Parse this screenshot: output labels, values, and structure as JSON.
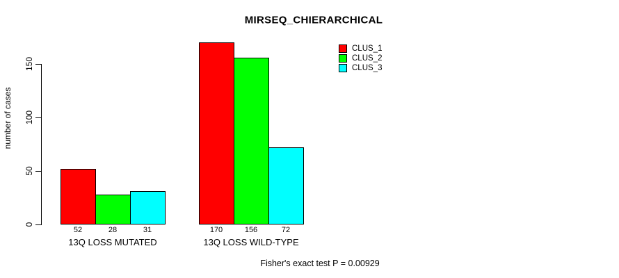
{
  "chart_data": {
    "type": "bar",
    "title": "MIRSEQ_CHIERARCHICAL",
    "ylabel": "number of cases",
    "xlabel": "",
    "categories": [
      "13Q LOSS MUTATED",
      "13Q LOSS WILD-TYPE"
    ],
    "series": [
      {
        "name": "CLUS_1",
        "color": "#FF0000",
        "values": [
          52,
          170
        ]
      },
      {
        "name": "CLUS_2",
        "color": "#00FF00",
        "values": [
          28,
          156
        ]
      },
      {
        "name": "CLUS_3",
        "color": "#00FFFF",
        "values": [
          31,
          72
        ]
      }
    ],
    "bar_value_labels": [
      [
        "52",
        "28",
        "31"
      ],
      [
        "170",
        "156",
        "72"
      ]
    ],
    "yticks": [
      0,
      50,
      100,
      150
    ],
    "ylim": [
      0,
      170
    ],
    "grid": false,
    "legend_position": "top-right",
    "annotation": "Fisher's exact test P = 0.00929"
  },
  "colors": {
    "background": "#FFFFFF",
    "axis": "#000000",
    "text": "#000000"
  }
}
